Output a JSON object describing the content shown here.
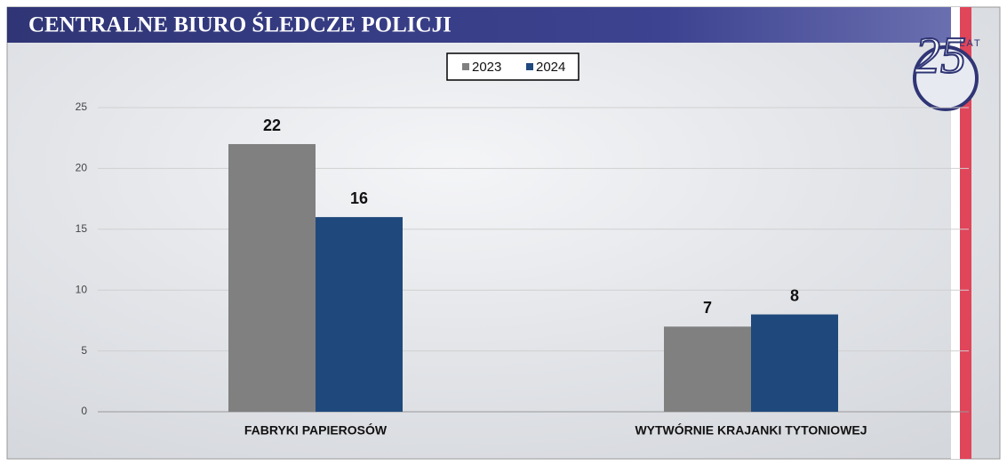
{
  "header": {
    "title": "CENTRALNE BIURO ŚLEDCZE POLICJI",
    "logo_number": "25",
    "logo_text": "LAT"
  },
  "chart_data": {
    "type": "bar",
    "categories": [
      "FABRYKI PAPIEROSÓW",
      "WYTWÓRNIE KRAJANKI TYTONIOWEJ"
    ],
    "series": [
      {
        "name": "2023",
        "color": "#808080",
        "values": [
          22,
          7
        ]
      },
      {
        "name": "2024",
        "color": "#1f497d",
        "values": [
          16,
          8
        ]
      }
    ],
    "ylim": [
      0,
      25
    ],
    "yticks": [
      0,
      5,
      10,
      15,
      20,
      25
    ],
    "grid": true,
    "legend": "top"
  }
}
